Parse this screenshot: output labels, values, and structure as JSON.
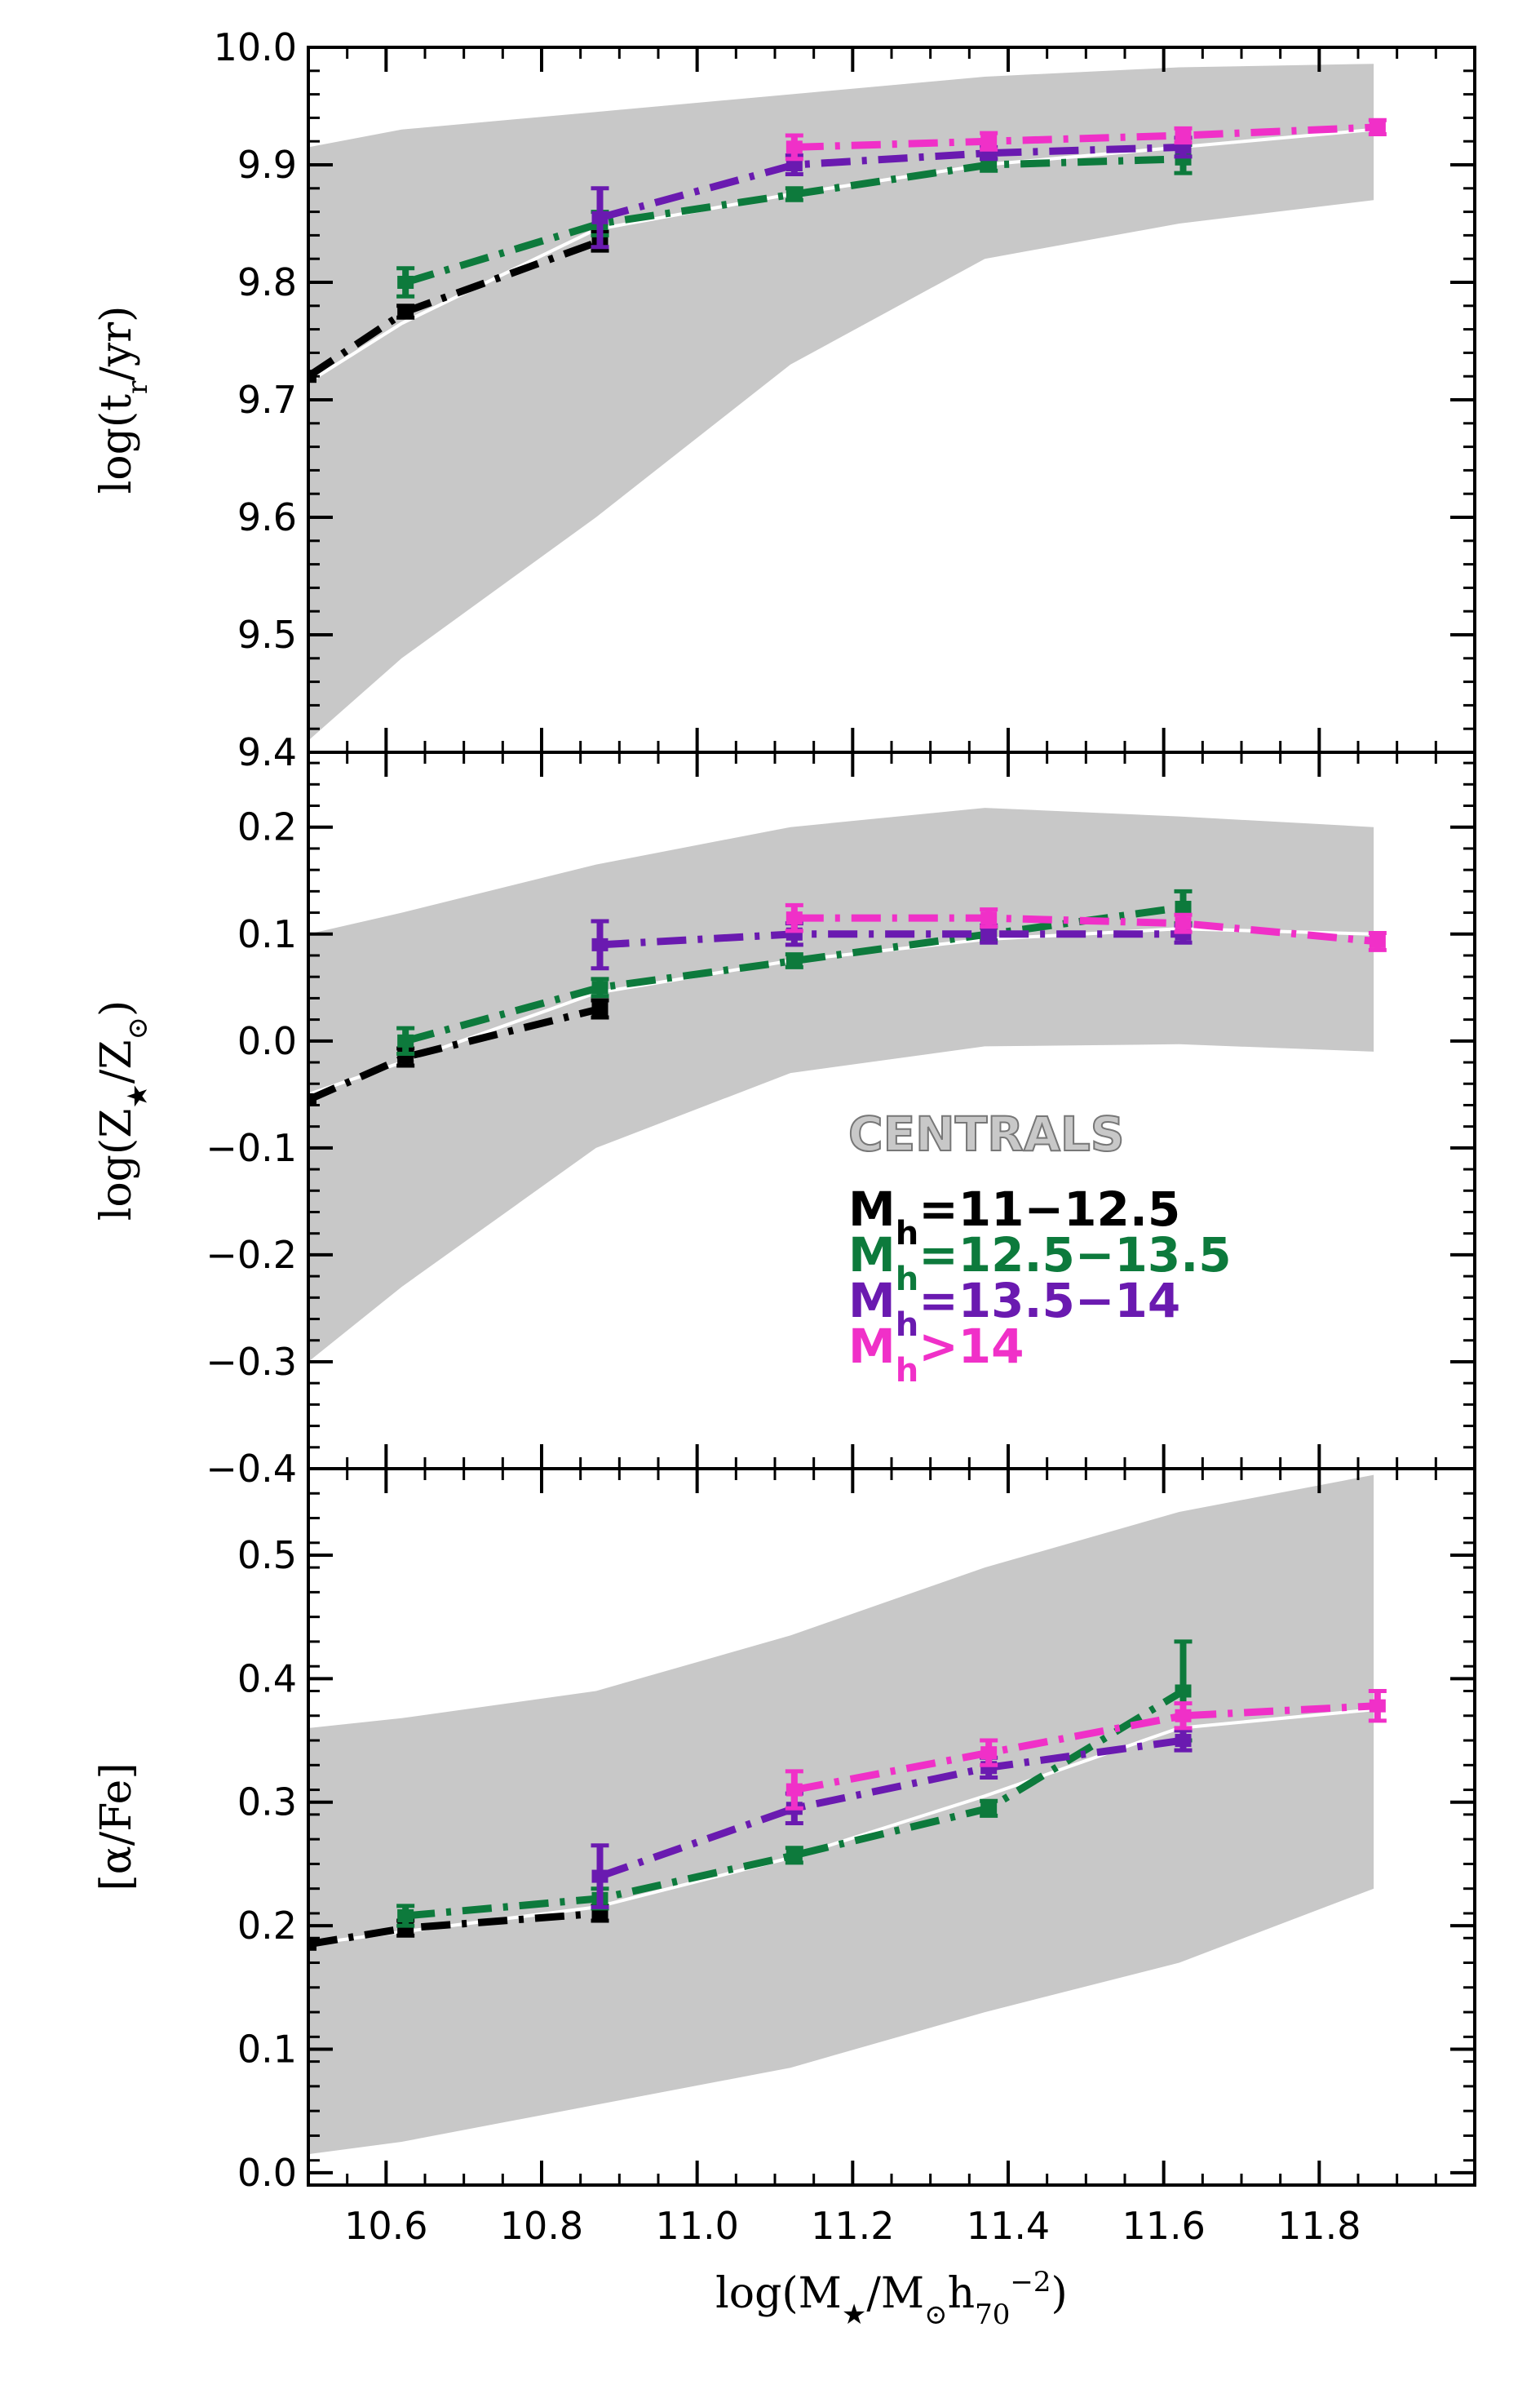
{
  "chart_data": [
    {
      "type": "line",
      "panel": "top",
      "ylabel": "log(t_r/yr)",
      "ylabel_parts": {
        "pre": "log(t",
        "sub": "r",
        "post": "/yr)"
      },
      "ylim": [
        9.4,
        10.0
      ],
      "yticks": [
        9.4,
        9.5,
        9.6,
        9.7,
        9.8,
        9.9,
        10.0
      ],
      "ytick_labels": [
        "9.4",
        "9.5",
        "9.6",
        "9.7",
        "9.8",
        "9.9",
        "10.0"
      ],
      "band": {
        "x": [
          10.5,
          10.62,
          10.87,
          11.12,
          11.37,
          11.62,
          11.87
        ],
        "lower": [
          9.41,
          9.48,
          9.6,
          9.73,
          9.82,
          9.85,
          9.87
        ],
        "upper": [
          9.915,
          9.93,
          9.945,
          9.96,
          9.975,
          9.983,
          9.986
        ]
      },
      "median": {
        "x": [
          10.5,
          10.62,
          10.87,
          11.12,
          11.37,
          11.62,
          11.87
        ],
        "y": [
          9.715,
          9.765,
          9.845,
          9.875,
          9.9,
          9.915,
          9.93
        ]
      },
      "series": [
        {
          "name": "M_h=11-12.5",
          "x": [
            10.5,
            10.625,
            10.875
          ],
          "y": [
            9.72,
            9.775,
            9.835
          ],
          "err": [
            0,
            0.005,
            0.008
          ]
        },
        {
          "name": "M_h=12.5-13.5",
          "x": [
            10.625,
            10.875,
            11.125,
            11.375,
            11.625
          ],
          "y": [
            9.8,
            9.85,
            9.875,
            9.9,
            9.905
          ],
          "err": [
            0.012,
            0.01,
            0.005,
            0.005,
            0.012
          ]
        },
        {
          "name": "M_h=13.5-14",
          "x": [
            10.875,
            11.125,
            11.375,
            11.625
          ],
          "y": [
            9.855,
            9.9,
            9.91,
            9.915
          ],
          "err": [
            0.025,
            0.008,
            0.005,
            0.008
          ]
        },
        {
          "name": "M_h>14",
          "x": [
            11.125,
            11.375,
            11.625,
            11.875
          ],
          "y": [
            9.915,
            9.92,
            9.925,
            9.932
          ],
          "err": [
            0.01,
            0.007,
            0.006,
            0.006
          ]
        }
      ]
    },
    {
      "type": "line",
      "panel": "middle",
      "ylabel": "log(Z_*/Z_sun)",
      "ylabel_parts": {
        "pre": "log(Z",
        "sub": "★",
        "mid": "/Z",
        "sub2": "⊙",
        "post": ")"
      },
      "ylim": [
        -0.4,
        0.27
      ],
      "yticks": [
        -0.4,
        -0.3,
        -0.2,
        -0.1,
        0.0,
        0.1,
        0.2
      ],
      "ytick_labels": [
        "−0.4",
        "−0.3",
        "−0.2",
        "−0.1",
        "0.0",
        "0.1",
        "0.2"
      ],
      "band": {
        "x": [
          10.5,
          10.62,
          10.87,
          11.12,
          11.37,
          11.62,
          11.87
        ],
        "lower": [
          -0.3,
          -0.23,
          -0.1,
          -0.03,
          -0.005,
          -0.003,
          -0.01
        ],
        "upper": [
          0.1,
          0.12,
          0.165,
          0.2,
          0.218,
          0.21,
          0.2
        ]
      },
      "median": {
        "x": [
          10.5,
          10.62,
          10.87,
          11.12,
          11.37,
          11.62,
          11.87
        ],
        "y": [
          -0.05,
          -0.02,
          0.045,
          0.075,
          0.095,
          0.105,
          0.1
        ]
      },
      "series": [
        {
          "name": "M_h=11-12.5",
          "x": [
            10.5,
            10.625,
            10.875
          ],
          "y": [
            -0.055,
            -0.015,
            0.03
          ],
          "err": [
            0,
            0.008,
            0.008
          ]
        },
        {
          "name": "M_h=12.5-13.5",
          "x": [
            10.625,
            10.875,
            11.125,
            11.375,
            11.625
          ],
          "y": [
            0.0,
            0.05,
            0.075,
            0.1,
            0.125
          ],
          "err": [
            0.012,
            0.008,
            0.006,
            0.006,
            0.015
          ]
        },
        {
          "name": "M_h=13.5-14",
          "x": [
            10.875,
            11.125,
            11.375,
            11.625
          ],
          "y": [
            0.09,
            0.1,
            0.1,
            0.1
          ],
          "err": [
            0.022,
            0.01,
            0.008,
            0.008
          ]
        },
        {
          "name": "M_h>14",
          "x": [
            11.125,
            11.375,
            11.625,
            11.875
          ],
          "y": [
            0.115,
            0.115,
            0.11,
            0.093
          ],
          "err": [
            0.012,
            0.008,
            0.008,
            0.008
          ]
        }
      ]
    },
    {
      "type": "line",
      "panel": "bottom",
      "ylabel": "[α/Fe]",
      "ylim": [
        -0.01,
        0.57
      ],
      "yticks": [
        0.0,
        0.1,
        0.2,
        0.3,
        0.4,
        0.5
      ],
      "ytick_labels": [
        "0.0",
        "0.1",
        "0.2",
        "0.3",
        "0.4",
        "0.5"
      ],
      "band": {
        "x": [
          10.5,
          10.62,
          10.87,
          11.12,
          11.37,
          11.62,
          11.87
        ],
        "lower": [
          0.015,
          0.025,
          0.055,
          0.085,
          0.13,
          0.17,
          0.23
        ],
        "upper": [
          0.36,
          0.368,
          0.39,
          0.435,
          0.49,
          0.535,
          0.565
        ]
      },
      "median": {
        "x": [
          10.5,
          10.62,
          10.87,
          11.12,
          11.37,
          11.62,
          11.87
        ],
        "y": [
          0.185,
          0.195,
          0.215,
          0.255,
          0.305,
          0.36,
          0.375
        ]
      },
      "series": [
        {
          "name": "M_h=11-12.5",
          "x": [
            10.5,
            10.625,
            10.875
          ],
          "y": [
            0.185,
            0.198,
            0.21
          ],
          "err": [
            0,
            0.006,
            0.006
          ]
        },
        {
          "name": "M_h=12.5-13.5",
          "x": [
            10.625,
            10.875,
            11.125,
            11.375,
            11.625
          ],
          "y": [
            0.208,
            0.222,
            0.257,
            0.295,
            0.39
          ],
          "err": [
            0.008,
            0.008,
            0.006,
            0.006,
            0.04
          ]
        },
        {
          "name": "M_h=13.5-14",
          "x": [
            10.875,
            11.125,
            11.375,
            11.625
          ],
          "y": [
            0.24,
            0.295,
            0.328,
            0.35
          ],
          "err": [
            0.025,
            0.012,
            0.008,
            0.008
          ]
        },
        {
          "name": "M_h>14",
          "x": [
            11.125,
            11.375,
            11.625,
            11.875
          ],
          "y": [
            0.31,
            0.34,
            0.37,
            0.378
          ],
          "err": [
            0.015,
            0.01,
            0.01,
            0.012
          ]
        }
      ]
    }
  ],
  "x_axis": {
    "xlim": [
      10.5,
      12.0
    ],
    "xticks": [
      10.6,
      10.8,
      11.0,
      11.2,
      11.4,
      11.6,
      11.8
    ],
    "xtick_labels": [
      "10.6",
      "10.8",
      "11.0",
      "11.2",
      "11.4",
      "11.6",
      "11.8"
    ],
    "xlabel": "log(M_*/M_sun h_70^-2)",
    "xlabel_parts": {
      "pre": "log(M",
      "sub": "★",
      "mid": "/M",
      "sub2": "⊙",
      "mid2": "h",
      "sub3": "70",
      "sup": "−2",
      "post": ")"
    }
  },
  "annotation": {
    "title": "CENTRALS"
  },
  "legend": [
    {
      "name": "M_h=11-12.5",
      "prefix": "M",
      "sub": "h",
      "text": "=11−12.5",
      "color": "#000000"
    },
    {
      "name": "M_h=12.5-13.5",
      "prefix": "M",
      "sub": "h",
      "text": "=12.5−13.5",
      "color": "#0d7a3c"
    },
    {
      "name": "M_h=13.5-14",
      "prefix": "M",
      "sub": "h",
      "text": "=13.5−14",
      "color": "#6a1ab0"
    },
    {
      "name": "M_h>14",
      "prefix": "M",
      "sub": "h",
      "text": ">14",
      "color": "#f030c8"
    }
  ],
  "colors": {
    "band": "#c8c8c8",
    "median": "#ffffff",
    "series": [
      "#000000",
      "#0d7a3c",
      "#6a1ab0",
      "#f030c8"
    ]
  }
}
